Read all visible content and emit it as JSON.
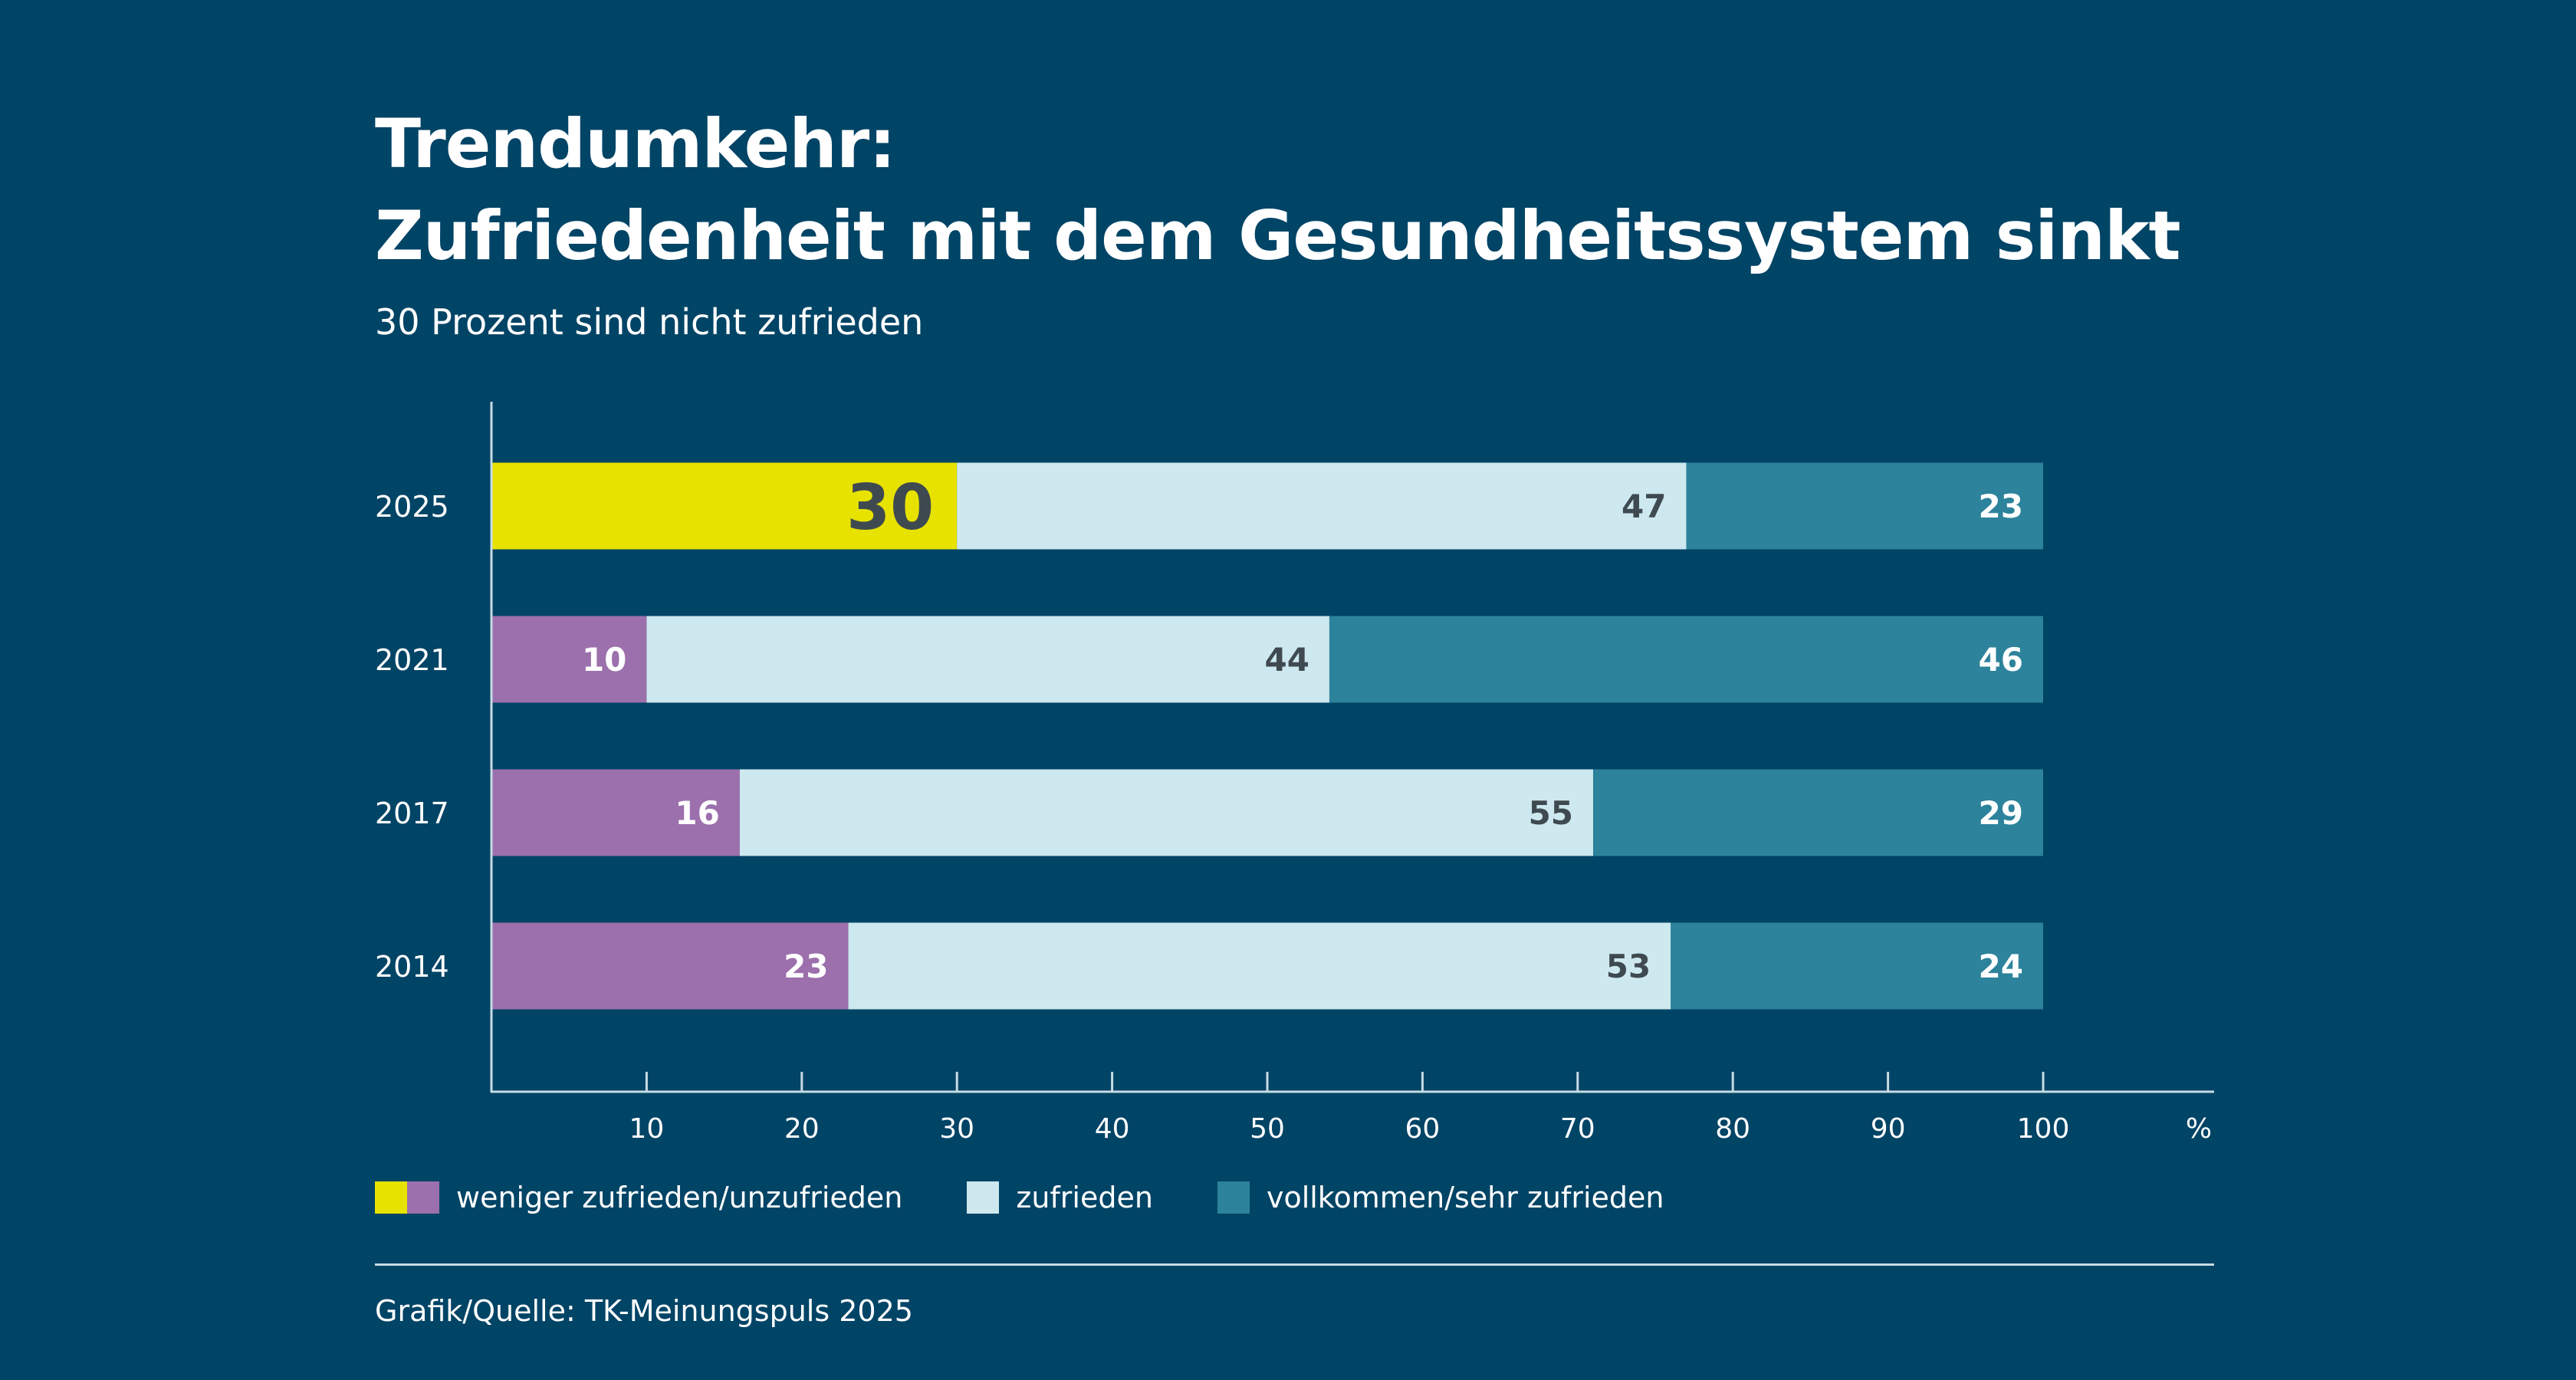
{
  "header": {
    "title_line1": "Trendumkehr:",
    "title_line2": "Zufriedenheit mit dem Gesundheitssystem sinkt",
    "subtitle": "30 Prozent sind nicht zufrieden"
  },
  "colors": {
    "background": "#004466",
    "unzufrieden_highlight": "#e8e200",
    "unzufrieden": "#9c70ac",
    "zufrieden": "#cde8ef",
    "sehr_zufrieden": "#2c839b",
    "axis": "#c7dbe4",
    "dark_label": "#3f4a50",
    "light_label": "#ffffff"
  },
  "chart_data": {
    "type": "bar",
    "orientation": "horizontal",
    "stacked": true,
    "categories": [
      "2025",
      "2021",
      "2017",
      "2014"
    ],
    "series": [
      {
        "name": "weniger zufrieden/unzufrieden",
        "values": [
          30,
          10,
          16,
          23
        ]
      },
      {
        "name": "zufrieden",
        "values": [
          47,
          44,
          55,
          53
        ]
      },
      {
        "name": "vollkommen/sehr zufrieden",
        "values": [
          23,
          46,
          29,
          24
        ]
      }
    ],
    "xlim": [
      0,
      100
    ],
    "xticks": [
      10,
      20,
      30,
      40,
      50,
      60,
      70,
      80,
      90,
      100
    ],
    "xunit": "%",
    "grid": false,
    "highlight_category": "2025",
    "legend_position": "bottom-left"
  },
  "legend": {
    "items": [
      {
        "label": "weniger zufrieden/unzufrieden"
      },
      {
        "label": "zufrieden"
      },
      {
        "label": "vollkommen/sehr zufrieden"
      }
    ]
  },
  "footer": {
    "source": "Grafik/Quelle: TK-Meinungspuls 2025"
  }
}
